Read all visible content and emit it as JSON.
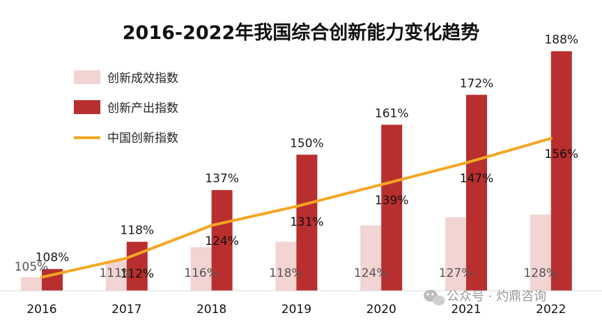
{
  "chart_data": {
    "type": "bar",
    "title": "2016-2022年我国综合创新能力变化趋势",
    "categories": [
      "2016",
      "2017",
      "2018",
      "2019",
      "2020",
      "2021",
      "2022"
    ],
    "series": [
      {
        "name": "创新成效指数",
        "kind": "bar",
        "color": "#f2d4d2",
        "values": [
          105,
          111,
          116,
          118,
          124,
          127,
          128
        ],
        "labels": [
          "105%",
          "111%",
          "116%",
          "118%",
          "124%",
          "127%",
          "128%"
        ]
      },
      {
        "name": "创新产出指数",
        "kind": "bar",
        "color": "#b92e2e",
        "values": [
          108,
          118,
          137,
          150,
          161,
          172,
          188
        ],
        "labels": [
          "108%",
          "118%",
          "137%",
          "150%",
          "161%",
          "172%",
          "188%"
        ]
      },
      {
        "name": "中国创新指数",
        "kind": "line",
        "color": "#f5a623",
        "values": [
          105,
          112,
          124,
          131,
          139,
          147,
          156
        ],
        "labels": [
          "105%",
          "112%",
          "124%",
          "131%",
          "139%",
          "147%",
          "156%"
        ]
      }
    ],
    "value_unit": "%",
    "xlabel": "",
    "ylabel": "",
    "ylim": [
      100,
      192
    ],
    "grid": false,
    "legend_position": "top-left"
  },
  "watermark": "公众号 · 灼鼎咨询"
}
